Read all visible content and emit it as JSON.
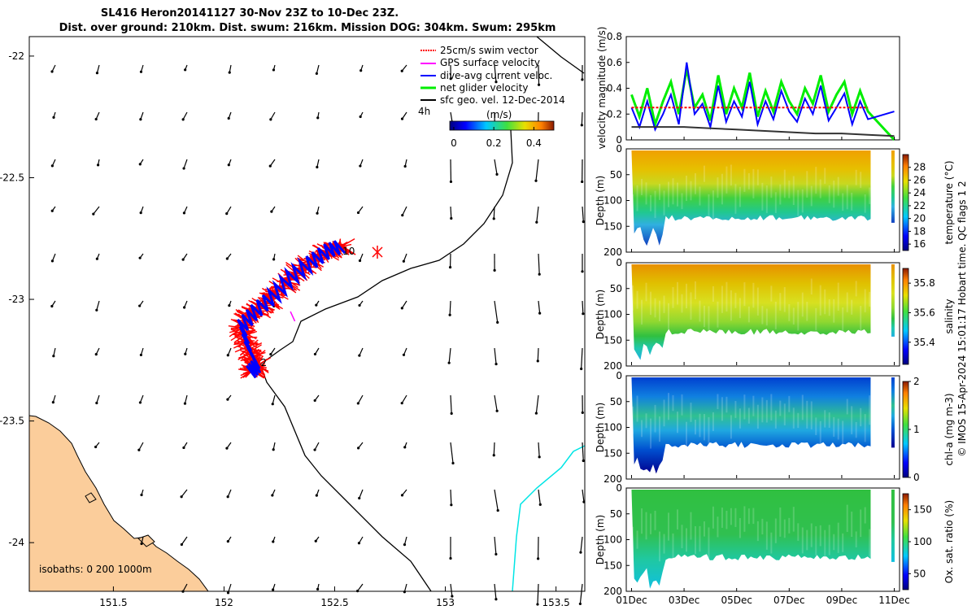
{
  "title": {
    "line1": "SL416 Heron20141127 30-Nov 23Z to 10-Dec 23Z.",
    "line2": "Dist. over ground: 210km. Dist. swum: 216km. Mission DOG: 304km. Swum: 295km"
  },
  "chart_data": [
    {
      "type": "map",
      "x_ticks": [
        "151.5",
        "152",
        "152.5",
        "153",
        "153.5"
      ],
      "x_values": [
        151.5,
        152,
        152.5,
        153,
        153.5
      ],
      "y_ticks": [
        "-22",
        "-22.5",
        "-23",
        "-23.5",
        "-24"
      ],
      "y_values": [
        -22,
        -22.5,
        -23,
        -23.5,
        -24
      ],
      "xlim": [
        151.12,
        153.63
      ],
      "ylim": [
        -24.2,
        -21.92
      ],
      "legend": [
        {
          "label": "25cm/s swim vector",
          "color": "#ff0000"
        },
        {
          "label": "GPS surface velocity",
          "color": "#ff00ff"
        },
        {
          "label": "dive-avg current veloc.",
          "color": "#0000ff"
        },
        {
          "label": "net glider velocity",
          "color": "#00ee00"
        },
        {
          "label": "sfc geo. vel. 12-Dec-2014",
          "color": "#000000"
        }
      ],
      "scale_label": "4h",
      "colorbar": {
        "label": "(m/s)",
        "ticks": [
          "0",
          "0.2",
          "0.4"
        ],
        "tick_values": [
          0,
          0.2,
          0.4
        ],
        "range": [
          -0.02,
          0.5
        ]
      },
      "track_labels": [
        {
          "text": "10",
          "lon": 152.55,
          "lat": -22.8
        },
        {
          "text": "2",
          "lon": 152.18,
          "lat": -23.26
        }
      ],
      "isobaths_text": "isobaths: 0   200  1000m",
      "track": [
        [
          152.12,
          -23.3
        ],
        [
          152.15,
          -23.27
        ],
        [
          152.11,
          -23.2
        ],
        [
          152.08,
          -23.11
        ],
        [
          152.14,
          -23.05
        ],
        [
          152.22,
          -22.99
        ],
        [
          152.3,
          -22.91
        ],
        [
          152.39,
          -22.85
        ],
        [
          152.47,
          -22.8
        ],
        [
          152.54,
          -22.78
        ]
      ]
    },
    {
      "type": "line",
      "ylabel": "velocity magnitude (m/s)",
      "ylim": [
        0,
        0.8
      ],
      "y_ticks": [
        "0",
        "0.2",
        "0.4",
        "0.6",
        "0.8"
      ],
      "y_tick_values": [
        0,
        0.2,
        0.4,
        0.6,
        0.8
      ],
      "xlim_days": [
        0.8,
        11.2
      ],
      "series": [
        {
          "name": "net glider velocity",
          "color": "#00ee00",
          "x": [
            1,
            1.3,
            1.6,
            1.9,
            2.2,
            2.5,
            2.8,
            3.1,
            3.4,
            3.7,
            4,
            4.3,
            4.6,
            4.9,
            5.2,
            5.5,
            5.8,
            6.1,
            6.4,
            6.7,
            7,
            7.3,
            7.6,
            7.9,
            8.2,
            8.5,
            8.8,
            9.1,
            9.4,
            9.7,
            10,
            11
          ],
          "values": [
            0.35,
            0.18,
            0.4,
            0.12,
            0.3,
            0.45,
            0.2,
            0.55,
            0.25,
            0.35,
            0.15,
            0.5,
            0.2,
            0.4,
            0.25,
            0.52,
            0.18,
            0.38,
            0.22,
            0.45,
            0.3,
            0.2,
            0.4,
            0.28,
            0.5,
            0.22,
            0.35,
            0.45,
            0.2,
            0.38,
            0.22,
            0.0
          ]
        },
        {
          "name": "dive-avg current veloc.",
          "color": "#0000ff",
          "x": [
            1,
            1.3,
            1.6,
            1.9,
            2.2,
            2.5,
            2.8,
            3.1,
            3.4,
            3.7,
            4,
            4.3,
            4.6,
            4.9,
            5.2,
            5.5,
            5.8,
            6.1,
            6.4,
            6.7,
            7,
            7.3,
            7.6,
            7.9,
            8.2,
            8.5,
            8.8,
            9.1,
            9.4,
            9.7,
            10,
            11
          ],
          "values": [
            0.25,
            0.1,
            0.3,
            0.08,
            0.2,
            0.35,
            0.12,
            0.6,
            0.2,
            0.28,
            0.1,
            0.42,
            0.14,
            0.3,
            0.18,
            0.45,
            0.12,
            0.3,
            0.16,
            0.38,
            0.22,
            0.14,
            0.32,
            0.2,
            0.42,
            0.15,
            0.25,
            0.36,
            0.12,
            0.3,
            0.16,
            0.22
          ]
        },
        {
          "name": "25cm/s swim vector",
          "color": "#ff0000",
          "x": [
            1,
            10
          ],
          "values": [
            0.25,
            0.25
          ]
        },
        {
          "name": "sfc geo. vel.",
          "color": "#333333",
          "x": [
            1,
            2,
            3,
            4,
            5,
            6,
            7,
            8,
            9,
            10,
            11
          ],
          "values": [
            0.1,
            0.1,
            0.1,
            0.09,
            0.08,
            0.07,
            0.06,
            0.05,
            0.05,
            0.04,
            0.03
          ]
        }
      ]
    },
    {
      "type": "scatter-section",
      "ylabel": "Depth (m)",
      "ylim": [
        200,
        0
      ],
      "y_ticks": [
        "0",
        "50",
        "100",
        "150",
        "200"
      ],
      "colorbar_label": "temperature (°C)",
      "colorbar_ticks": [
        "16",
        "18",
        "20",
        "22",
        "24",
        "26",
        "28"
      ],
      "colorbar_range": [
        15,
        30
      ]
    },
    {
      "type": "scatter-section",
      "ylabel": "Depth (m)",
      "ylim": [
        200,
        0
      ],
      "y_ticks": [
        "0",
        "50",
        "100",
        "150",
        "200"
      ],
      "colorbar_label": "salinity",
      "colorbar_ticks": [
        "35.4",
        "35.6",
        "35.8"
      ],
      "colorbar_range": [
        35.25,
        35.9
      ]
    },
    {
      "type": "scatter-section",
      "ylabel": "Depth (m)",
      "ylim": [
        200,
        0
      ],
      "y_ticks": [
        "0",
        "50",
        "100",
        "150",
        "200"
      ],
      "colorbar_label": "chl-a (mg m-3)",
      "colorbar_ticks": [
        "0",
        "1",
        "2"
      ],
      "colorbar_range": [
        0,
        2
      ]
    },
    {
      "type": "scatter-section",
      "ylabel": "Depth (m)",
      "ylim": [
        200,
        0
      ],
      "y_ticks": [
        "0",
        "50",
        "100",
        "150",
        "200"
      ],
      "colorbar_label": "Ox. sat. ratio (%)",
      "colorbar_ticks": [
        "50",
        "100",
        "150"
      ],
      "colorbar_range": [
        25,
        175
      ]
    }
  ],
  "time_axis": {
    "ticks": [
      "01Dec",
      "03Dec",
      "05Dec",
      "07Dec",
      "09Dec",
      "11Dec"
    ],
    "tick_days": [
      1,
      3,
      5,
      7,
      9,
      11
    ]
  },
  "footer_note": "© IMOS 15-Apr-2024 15:01:17 Hobart time. QC flags 1  2"
}
